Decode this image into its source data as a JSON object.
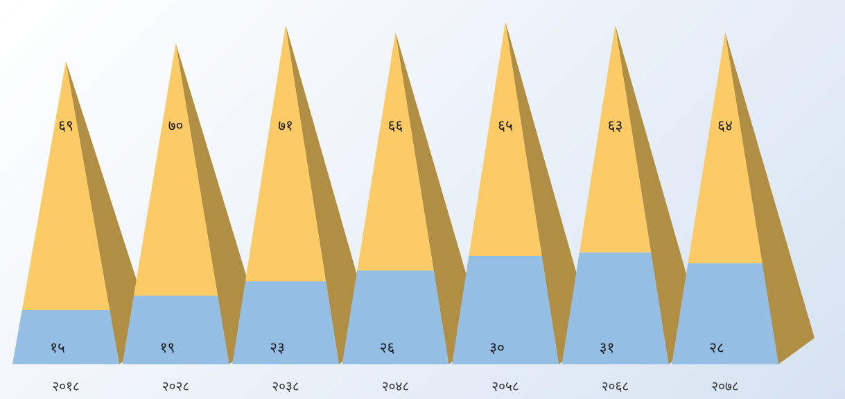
{
  "colors": {
    "top_face": "#FCCB66",
    "side_face": "#B08F44",
    "bottom_face": "#95BEE4",
    "background": "#EEF3F9"
  },
  "chart_data": {
    "type": "bar",
    "subtype": "stacked-pyramid",
    "categories": [
      "२०१८",
      "२०२८",
      "२०३८",
      "२०४८",
      "२०५८",
      "२०६८",
      "२०७८"
    ],
    "series": [
      {
        "values": [
          15,
          19,
          23,
          26,
          30,
          31,
          28
        ],
        "labels": [
          "१५",
          "१९",
          "२३",
          "२६",
          "३०",
          "३१",
          "२८"
        ]
      },
      {
        "values": [
          69,
          70,
          71,
          66,
          65,
          63,
          64
        ],
        "labels": [
          "६९",
          "७०",
          "७१",
          "६६",
          "६५",
          "६३",
          "६४"
        ]
      }
    ],
    "ylim": [
      0,
      100
    ],
    "grid": false,
    "legend": "none"
  }
}
